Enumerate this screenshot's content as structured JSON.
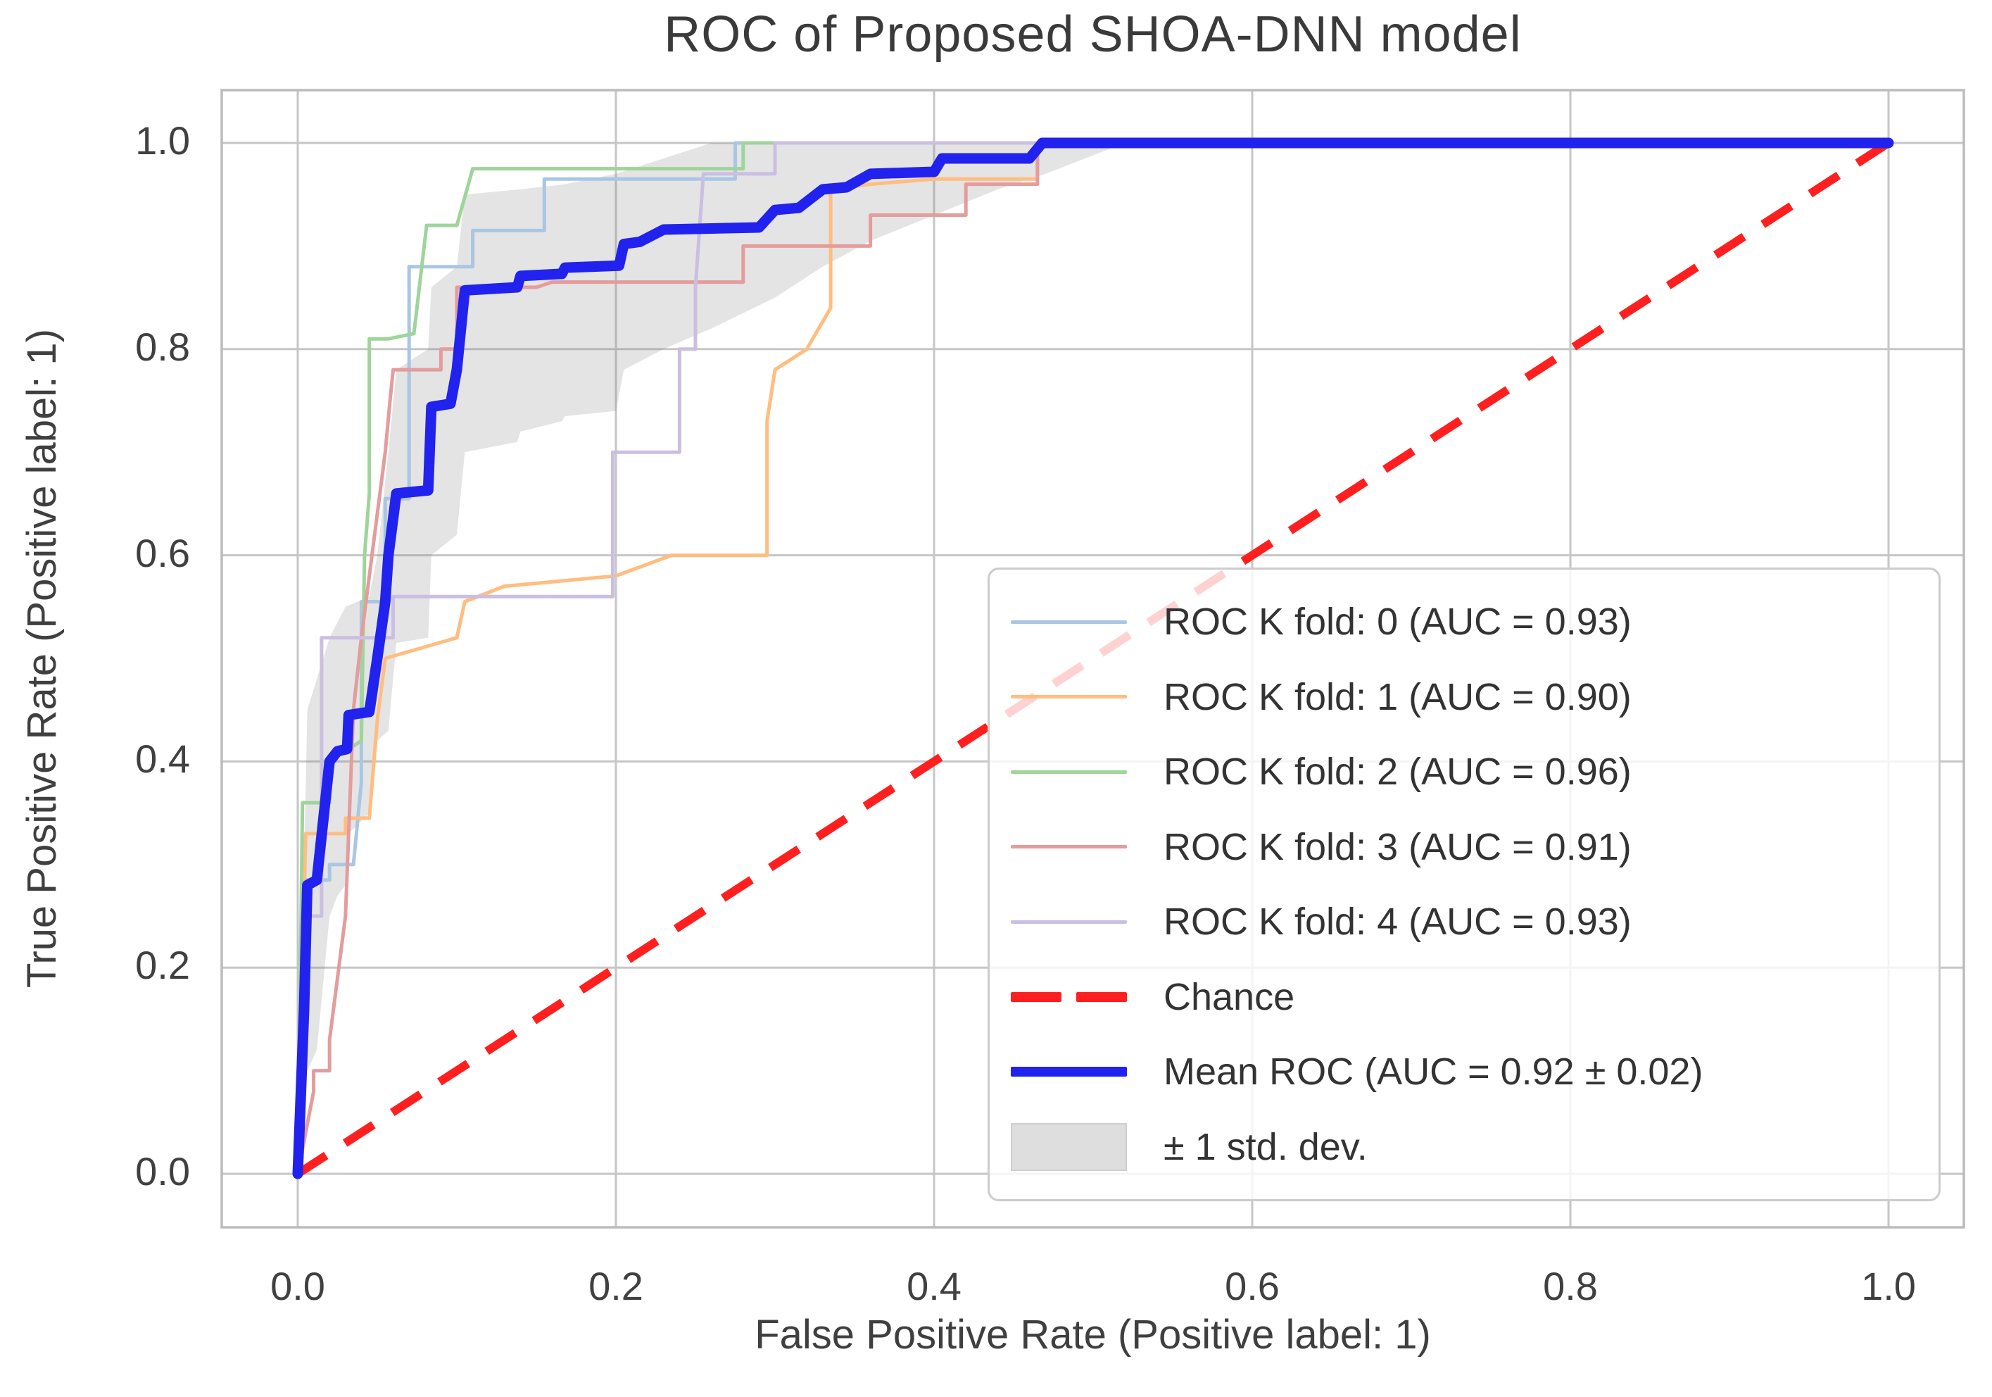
{
  "figure": {
    "background": "#ffffff"
  },
  "colors": {
    "grid": "#c6c6c6",
    "frame": "#bcbcbc",
    "text": "#3f3f3f",
    "mean_blue": "#2222ee",
    "chance_red": "#ff1f1f",
    "band_gray": "rgba(130,130,130,0.22)",
    "fold0": "#a9c6e4",
    "fold1": "#ffbd80",
    "fold2": "#9fd49b",
    "fold3": "#e49c9c",
    "fold4": "#cabfe2"
  },
  "chart_data": {
    "type": "line",
    "title": "ROC of Proposed SHOA-DNN model",
    "xlabel": "False Positive Rate (Positive label: 1)",
    "ylabel": "True Positive Rate (Positive label: 1)",
    "xlim": [
      -0.048,
      1.047
    ],
    "ylim": [
      -0.052,
      1.051
    ],
    "grid": true,
    "legend_position": "lower right",
    "x_ticks": {
      "values": [
        0,
        0.2,
        0.4,
        0.6,
        0.8,
        1.0
      ],
      "labels": [
        "0.0",
        "0.2",
        "0.4",
        "0.6",
        "0.8",
        "1.0"
      ]
    },
    "y_ticks": {
      "values": [
        0,
        0.2,
        0.4,
        0.6,
        0.8,
        1.0
      ],
      "labels": [
        "0.0",
        "0.2",
        "0.4",
        "0.6",
        "0.8",
        "1.0"
      ]
    },
    "series": [
      {
        "name": "ROC K fold: 0 (AUC = 0.93)",
        "fold": 0,
        "auc": 0.93,
        "color": "#a9c6e4",
        "width": 5,
        "points": [
          [
            0,
            0
          ],
          [
            0.005,
            0.16
          ],
          [
            0.005,
            0.285
          ],
          [
            0.02,
            0.285
          ],
          [
            0.02,
            0.3
          ],
          [
            0.035,
            0.3
          ],
          [
            0.04,
            0.38
          ],
          [
            0.04,
            0.555
          ],
          [
            0.055,
            0.555
          ],
          [
            0.055,
            0.655
          ],
          [
            0.07,
            0.655
          ],
          [
            0.07,
            0.88
          ],
          [
            0.11,
            0.88
          ],
          [
            0.11,
            0.915
          ],
          [
            0.155,
            0.915
          ],
          [
            0.155,
            0.965
          ],
          [
            0.275,
            0.965
          ],
          [
            0.275,
            1
          ],
          [
            1,
            1
          ]
        ]
      },
      {
        "name": "ROC K fold: 1 (AUC = 0.90)",
        "fold": 1,
        "auc": 0.9,
        "color": "#ffbd80",
        "width": 5,
        "points": [
          [
            0,
            0
          ],
          [
            0.005,
            0.33
          ],
          [
            0.03,
            0.33
          ],
          [
            0.03,
            0.345
          ],
          [
            0.045,
            0.345
          ],
          [
            0.05,
            0.44
          ],
          [
            0.055,
            0.5
          ],
          [
            0.1,
            0.52
          ],
          [
            0.105,
            0.555
          ],
          [
            0.13,
            0.57
          ],
          [
            0.2,
            0.58
          ],
          [
            0.235,
            0.6
          ],
          [
            0.295,
            0.6
          ],
          [
            0.295,
            0.73
          ],
          [
            0.3,
            0.78
          ],
          [
            0.32,
            0.8
          ],
          [
            0.335,
            0.84
          ],
          [
            0.335,
            0.955
          ],
          [
            0.36,
            0.96
          ],
          [
            0.4,
            0.965
          ],
          [
            0.465,
            0.965
          ],
          [
            0.465,
            1
          ],
          [
            1,
            1
          ]
        ]
      },
      {
        "name": "ROC K fold: 2 (AUC = 0.96)",
        "fold": 2,
        "auc": 0.96,
        "color": "#9fd49b",
        "width": 5,
        "points": [
          [
            0,
            0
          ],
          [
            0.003,
            0.36
          ],
          [
            0.02,
            0.36
          ],
          [
            0.02,
            0.4
          ],
          [
            0.04,
            0.42
          ],
          [
            0.042,
            0.6
          ],
          [
            0.045,
            0.66
          ],
          [
            0.045,
            0.81
          ],
          [
            0.057,
            0.81
          ],
          [
            0.073,
            0.815
          ],
          [
            0.081,
            0.92
          ],
          [
            0.1,
            0.92
          ],
          [
            0.11,
            0.975
          ],
          [
            0.28,
            0.975
          ],
          [
            0.28,
            1
          ],
          [
            1,
            1
          ]
        ]
      },
      {
        "name": "ROC K fold: 3 (AUC = 0.91)",
        "fold": 3,
        "auc": 0.91,
        "color": "#e49c9c",
        "width": 5,
        "points": [
          [
            0,
            0
          ],
          [
            0.01,
            0.08
          ],
          [
            0.01,
            0.1
          ],
          [
            0.02,
            0.1
          ],
          [
            0.02,
            0.13
          ],
          [
            0.03,
            0.25
          ],
          [
            0.035,
            0.45
          ],
          [
            0.04,
            0.52
          ],
          [
            0.055,
            0.7
          ],
          [
            0.058,
            0.75
          ],
          [
            0.06,
            0.78
          ],
          [
            0.09,
            0.78
          ],
          [
            0.09,
            0.8
          ],
          [
            0.1,
            0.8
          ],
          [
            0.1,
            0.86
          ],
          [
            0.15,
            0.86
          ],
          [
            0.16,
            0.865
          ],
          [
            0.28,
            0.865
          ],
          [
            0.28,
            0.9
          ],
          [
            0.36,
            0.9
          ],
          [
            0.36,
            0.93
          ],
          [
            0.42,
            0.93
          ],
          [
            0.42,
            0.96
          ],
          [
            0.465,
            0.96
          ],
          [
            0.465,
            1
          ],
          [
            1,
            1
          ]
        ]
      },
      {
        "name": "ROC K fold: 4 (AUC = 0.93)",
        "fold": 4,
        "auc": 0.93,
        "color": "#cabfe2",
        "width": 5,
        "points": [
          [
            0,
            0
          ],
          [
            0.005,
            0.13
          ],
          [
            0.005,
            0.25
          ],
          [
            0.015,
            0.25
          ],
          [
            0.015,
            0.52
          ],
          [
            0.06,
            0.52
          ],
          [
            0.06,
            0.56
          ],
          [
            0.198,
            0.56
          ],
          [
            0.198,
            0.7
          ],
          [
            0.24,
            0.7
          ],
          [
            0.24,
            0.8
          ],
          [
            0.25,
            0.8
          ],
          [
            0.25,
            0.86
          ],
          [
            0.255,
            0.97
          ],
          [
            0.3,
            0.97
          ],
          [
            0.3,
            1
          ],
          [
            1,
            1
          ]
        ]
      }
    ],
    "chance": {
      "name": "Chance",
      "color": "#ff1f1f",
      "width": 12,
      "dashed": true,
      "points": [
        [
          0,
          0
        ],
        [
          1,
          1
        ]
      ]
    },
    "mean_roc": {
      "name": "Mean ROC (AUC = 0.92 ± 0.02)",
      "auc": 0.92,
      "auc_std": 0.02,
      "color": "#2222ee",
      "width": 15,
      "points": [
        [
          0,
          0
        ],
        [
          0.004,
          0.16
        ],
        [
          0.006,
          0.28
        ],
        [
          0.012,
          0.285
        ],
        [
          0.02,
          0.4
        ],
        [
          0.025,
          0.41
        ],
        [
          0.031,
          0.412
        ],
        [
          0.032,
          0.445
        ],
        [
          0.045,
          0.448
        ],
        [
          0.05,
          0.5
        ],
        [
          0.055,
          0.555
        ],
        [
          0.057,
          0.6
        ],
        [
          0.062,
          0.66
        ],
        [
          0.082,
          0.663
        ],
        [
          0.084,
          0.744
        ],
        [
          0.096,
          0.747
        ],
        [
          0.1,
          0.78
        ],
        [
          0.105,
          0.857
        ],
        [
          0.138,
          0.86
        ],
        [
          0.14,
          0.871
        ],
        [
          0.166,
          0.873
        ],
        [
          0.168,
          0.879
        ],
        [
          0.202,
          0.881
        ],
        [
          0.205,
          0.902
        ],
        [
          0.215,
          0.904
        ],
        [
          0.23,
          0.916
        ],
        [
          0.29,
          0.918
        ],
        [
          0.3,
          0.935
        ],
        [
          0.315,
          0.937
        ],
        [
          0.33,
          0.955
        ],
        [
          0.345,
          0.957
        ],
        [
          0.36,
          0.97
        ],
        [
          0.4,
          0.972
        ],
        [
          0.405,
          0.985
        ],
        [
          0.46,
          0.985
        ],
        [
          0.468,
          1
        ],
        [
          1,
          1
        ]
      ]
    },
    "std_band": {
      "name": "± 1 std. dev.",
      "color": "rgba(130,130,130,0.22)",
      "upper": [
        [
          0,
          0.02
        ],
        [
          0.004,
          0.3
        ],
        [
          0.006,
          0.45
        ],
        [
          0.02,
          0.52
        ],
        [
          0.03,
          0.55
        ],
        [
          0.045,
          0.56
        ],
        [
          0.05,
          0.6
        ],
        [
          0.057,
          0.7
        ],
        [
          0.062,
          0.78
        ],
        [
          0.082,
          0.8
        ],
        [
          0.084,
          0.86
        ],
        [
          0.1,
          0.88
        ],
        [
          0.105,
          0.95
        ],
        [
          0.14,
          0.955
        ],
        [
          0.168,
          0.96
        ],
        [
          0.2,
          0.97
        ],
        [
          0.23,
          0.985
        ],
        [
          0.26,
          1
        ],
        [
          0.52,
          1
        ]
      ],
      "lower": [
        [
          0,
          0
        ],
        [
          0.004,
          0.02
        ],
        [
          0.006,
          0.1
        ],
        [
          0.012,
          0.12
        ],
        [
          0.02,
          0.25
        ],
        [
          0.025,
          0.27
        ],
        [
          0.03,
          0.28
        ],
        [
          0.032,
          0.33
        ],
        [
          0.045,
          0.35
        ],
        [
          0.05,
          0.42
        ],
        [
          0.057,
          0.43
        ],
        [
          0.062,
          0.515
        ],
        [
          0.082,
          0.52
        ],
        [
          0.084,
          0.6
        ],
        [
          0.096,
          0.615
        ],
        [
          0.1,
          0.62
        ],
        [
          0.105,
          0.7
        ],
        [
          0.138,
          0.71
        ],
        [
          0.14,
          0.72
        ],
        [
          0.166,
          0.73
        ],
        [
          0.168,
          0.735
        ],
        [
          0.2,
          0.74
        ],
        [
          0.205,
          0.78
        ],
        [
          0.23,
          0.8
        ],
        [
          0.26,
          0.82
        ],
        [
          0.3,
          0.85
        ],
        [
          0.33,
          0.88
        ],
        [
          0.36,
          0.905
        ],
        [
          0.4,
          0.93
        ],
        [
          0.44,
          0.955
        ],
        [
          0.47,
          0.97
        ],
        [
          0.52,
          1
        ]
      ]
    }
  },
  "legend": {
    "entries": [
      {
        "label": "ROC K fold: 0 (AUC = 0.93)",
        "color": "#a9c6e4",
        "style": "line-thin"
      },
      {
        "label": "ROC K fold: 1 (AUC = 0.90)",
        "color": "#ffbd80",
        "style": "line-thin"
      },
      {
        "label": "ROC K fold: 2 (AUC = 0.96)",
        "color": "#9fd49b",
        "style": "line-thin"
      },
      {
        "label": "ROC K fold: 3 (AUC = 0.91)",
        "color": "#e49c9c",
        "style": "line-thin"
      },
      {
        "label": "ROC K fold: 4 (AUC = 0.93)",
        "color": "#cabfe2",
        "style": "line-thin"
      },
      {
        "label": "Chance",
        "color": "#ff1f1f",
        "style": "line-dash"
      },
      {
        "label": "Mean ROC (AUC = 0.92 ± 0.02)",
        "color": "#2222ee",
        "style": "line-thick"
      },
      {
        "label": "± 1 std. dev.",
        "color": "#dedede",
        "style": "patch"
      }
    ]
  }
}
